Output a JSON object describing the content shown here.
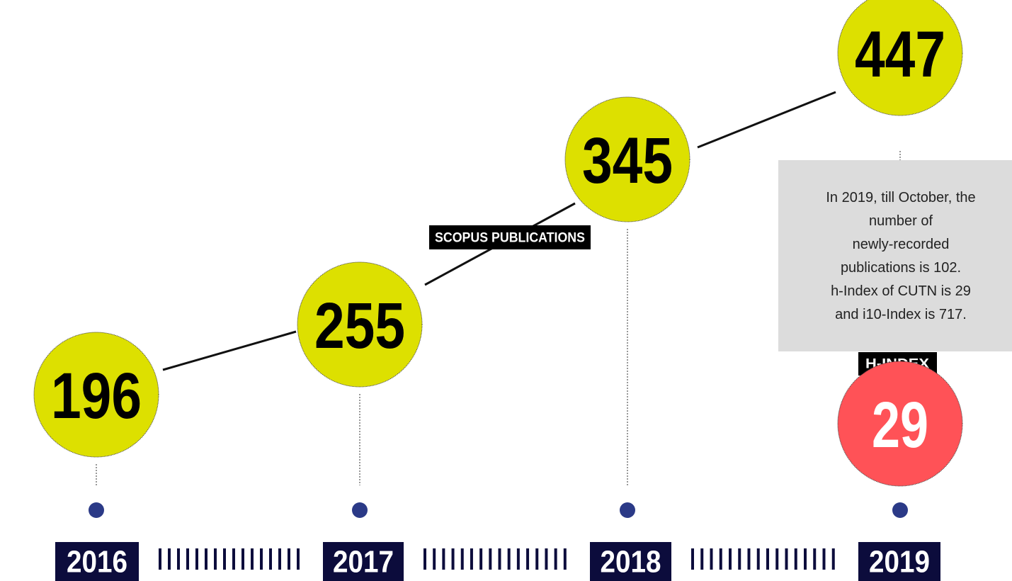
{
  "timeline": {
    "items": [
      {
        "year": "2016",
        "publications": 196
      },
      {
        "year": "2017",
        "publications": 255
      },
      {
        "year": "2018",
        "publications": 345
      },
      {
        "year": "2019",
        "publications": 447
      }
    ],
    "label": "SCOPUS PUBLICATIONS",
    "note": [
      "In 2019, till October, the",
      "number of",
      "newly-recorded",
      "publications is 102.",
      "h-Index of CUTN is 29",
      "and i10-Index is 717."
    ],
    "hindex": {
      "label": "H-INDEX",
      "value": 29
    }
  }
}
